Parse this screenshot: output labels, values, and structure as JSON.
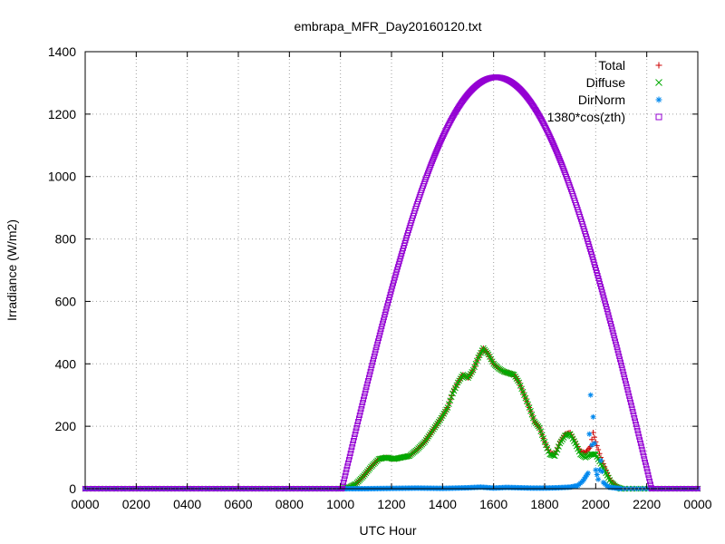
{
  "chart_data": {
    "type": "scatter",
    "title": "embrapa_MFR_Day20160120.txt",
    "xlabel": "UTC Hour",
    "ylabel": "Irradiance (W/m2)",
    "xlim": [
      0,
      24
    ],
    "ylim": [
      0,
      1400
    ],
    "x_tick_labels": [
      "0000",
      "0200",
      "0400",
      "0600",
      "0800",
      "1000",
      "1200",
      "1400",
      "1600",
      "1800",
      "2000",
      "2200",
      "0000"
    ],
    "y_tick_labels": [
      "0",
      "200",
      "400",
      "600",
      "800",
      "1000",
      "1200",
      "1400"
    ],
    "grid": true,
    "legend_position": "top-right",
    "series": [
      {
        "name": "Total",
        "marker": "plus",
        "color": "#cc0000",
        "points": [
          [
            10.0,
            0
          ],
          [
            10.3,
            3
          ],
          [
            10.6,
            15
          ],
          [
            10.9,
            40
          ],
          [
            11.2,
            70
          ],
          [
            11.5,
            95
          ],
          [
            11.8,
            100
          ],
          [
            12.1,
            95
          ],
          [
            12.4,
            100
          ],
          [
            12.7,
            105
          ],
          [
            13.0,
            125
          ],
          [
            13.3,
            150
          ],
          [
            13.6,
            185
          ],
          [
            13.9,
            220
          ],
          [
            14.2,
            260
          ],
          [
            14.4,
            310
          ],
          [
            14.6,
            340
          ],
          [
            14.8,
            365
          ],
          [
            15.0,
            355
          ],
          [
            15.2,
            380
          ],
          [
            15.4,
            420
          ],
          [
            15.6,
            450
          ],
          [
            15.8,
            430
          ],
          [
            16.0,
            400
          ],
          [
            16.2,
            385
          ],
          [
            16.4,
            375
          ],
          [
            16.6,
            370
          ],
          [
            16.8,
            365
          ],
          [
            17.0,
            340
          ],
          [
            17.2,
            300
          ],
          [
            17.4,
            260
          ],
          [
            17.6,
            215
          ],
          [
            17.8,
            195
          ],
          [
            18.0,
            150
          ],
          [
            18.2,
            115
          ],
          [
            18.4,
            110
          ],
          [
            18.6,
            150
          ],
          [
            18.8,
            175
          ],
          [
            19.0,
            180
          ],
          [
            19.2,
            150
          ],
          [
            19.4,
            120
          ],
          [
            19.6,
            115
          ],
          [
            19.8,
            135
          ],
          [
            19.9,
            180
          ],
          [
            20.0,
            150
          ],
          [
            20.2,
            100
          ],
          [
            20.4,
            60
          ],
          [
            20.6,
            25
          ],
          [
            20.8,
            8
          ],
          [
            21.0,
            0
          ]
        ]
      },
      {
        "name": "Diffuse",
        "marker": "cross",
        "color": "#00aa00",
        "points": [
          [
            10.0,
            0
          ],
          [
            10.3,
            3
          ],
          [
            10.6,
            15
          ],
          [
            10.9,
            40
          ],
          [
            11.2,
            70
          ],
          [
            11.5,
            95
          ],
          [
            11.8,
            100
          ],
          [
            12.1,
            95
          ],
          [
            12.4,
            100
          ],
          [
            12.7,
            105
          ],
          [
            13.0,
            125
          ],
          [
            13.3,
            150
          ],
          [
            13.6,
            185
          ],
          [
            13.9,
            220
          ],
          [
            14.2,
            260
          ],
          [
            14.4,
            305
          ],
          [
            14.6,
            340
          ],
          [
            14.8,
            365
          ],
          [
            15.0,
            355
          ],
          [
            15.2,
            380
          ],
          [
            15.4,
            420
          ],
          [
            15.6,
            450
          ],
          [
            15.8,
            430
          ],
          [
            16.0,
            400
          ],
          [
            16.2,
            385
          ],
          [
            16.4,
            375
          ],
          [
            16.6,
            370
          ],
          [
            16.8,
            365
          ],
          [
            17.0,
            340
          ],
          [
            17.2,
            300
          ],
          [
            17.4,
            260
          ],
          [
            17.6,
            215
          ],
          [
            17.8,
            195
          ],
          [
            18.0,
            150
          ],
          [
            18.2,
            110
          ],
          [
            18.4,
            105
          ],
          [
            18.6,
            145
          ],
          [
            18.8,
            170
          ],
          [
            19.0,
            175
          ],
          [
            19.2,
            145
          ],
          [
            19.4,
            110
          ],
          [
            19.6,
            100
          ],
          [
            19.8,
            110
          ],
          [
            20.0,
            110
          ],
          [
            20.2,
            80
          ],
          [
            20.4,
            50
          ],
          [
            20.6,
            20
          ],
          [
            20.8,
            6
          ],
          [
            21.0,
            0
          ]
        ]
      },
      {
        "name": "DirNorm",
        "marker": "star",
        "color": "#0088ee",
        "points": [
          [
            10.0,
            0
          ],
          [
            11.0,
            0
          ],
          [
            12.0,
            1
          ],
          [
            13.0,
            2
          ],
          [
            14.0,
            1
          ],
          [
            15.0,
            3
          ],
          [
            15.5,
            5
          ],
          [
            16.0,
            2
          ],
          [
            16.5,
            4
          ],
          [
            17.0,
            3
          ],
          [
            17.5,
            2
          ],
          [
            18.0,
            2
          ],
          [
            18.5,
            3
          ],
          [
            19.0,
            5
          ],
          [
            19.3,
            10
          ],
          [
            19.5,
            25
          ],
          [
            19.7,
            50
          ],
          [
            19.8,
            300
          ],
          [
            19.85,
            140
          ],
          [
            19.9,
            230
          ],
          [
            20.0,
            60
          ],
          [
            20.1,
            30
          ],
          [
            20.2,
            90
          ],
          [
            20.3,
            20
          ],
          [
            20.5,
            5
          ],
          [
            21.0,
            0
          ]
        ]
      },
      {
        "name": "1380*cos(zth)",
        "marker": "open-square",
        "color": "#9400d3",
        "curve": {
          "start_hour": 10.06,
          "end_hour": 22.19,
          "peak_hour": 16.1,
          "peak_value": 1318
        }
      }
    ]
  }
}
